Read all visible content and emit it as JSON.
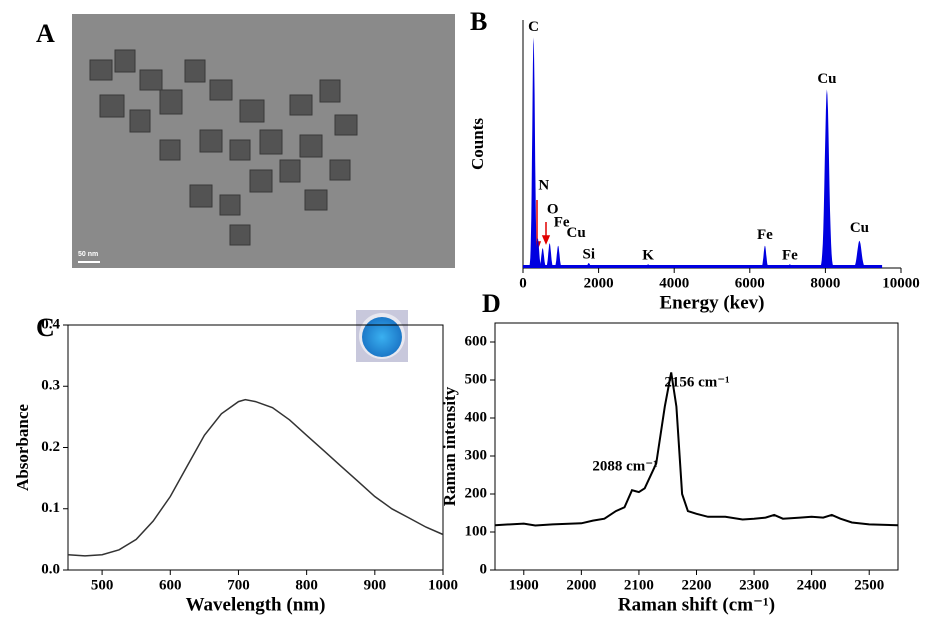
{
  "image_panel": {
    "panel_label": "A",
    "scale_bar": "50 nm"
  },
  "chart_data": [
    {
      "type": "area",
      "panel_label": "B",
      "ylabel": "Counts",
      "xlabel": "Energy (kev)",
      "color": "#0000e0",
      "x": [
        280,
        390,
        520,
        705,
        930,
        1740,
        3310,
        6400,
        7060,
        8040,
        8900
      ],
      "values": [
        93,
        12,
        8,
        10,
        9,
        2,
        1.5,
        9,
        1.5,
        72,
        11
      ],
      "labels": [
        "C",
        "N",
        "O",
        "Fe",
        "Cu",
        "Si",
        "K",
        "Fe",
        "Fe",
        "Cu",
        "Cu"
      ],
      "xlim": [
        0,
        10000
      ],
      "xticks": [
        0,
        2000,
        4000,
        6000,
        8000,
        10000
      ],
      "ylim": [
        0,
        100
      ]
    },
    {
      "type": "line",
      "panel_label": "C",
      "ylabel": "Absorbance",
      "xlabel": "Wavelength (nm)",
      "color": "#333333",
      "x": [
        450,
        475,
        500,
        525,
        550,
        575,
        600,
        625,
        650,
        675,
        700,
        710,
        725,
        750,
        775,
        800,
        825,
        850,
        875,
        900,
        925,
        950,
        975,
        1000
      ],
      "values": [
        0.025,
        0.023,
        0.025,
        0.033,
        0.05,
        0.08,
        0.12,
        0.17,
        0.22,
        0.255,
        0.275,
        0.278,
        0.275,
        0.265,
        0.245,
        0.22,
        0.195,
        0.17,
        0.145,
        0.12,
        0.1,
        0.085,
        0.07,
        0.058
      ],
      "xlim": [
        450,
        1000
      ],
      "xticks": [
        500,
        600,
        700,
        800,
        900,
        1000
      ],
      "ylim": [
        0,
        0.4
      ],
      "yticks": [
        {
          "value": 0,
          "label": "0.0"
        },
        0.1,
        0.2,
        0.3,
        0.4
      ]
    },
    {
      "type": "line",
      "panel_label": "D",
      "ylabel": "Raman intensity",
      "xlabel": "Raman shift (cm⁻¹)",
      "color": "#000000",
      "x": [
        1850,
        1900,
        1920,
        1950,
        2000,
        2020,
        2040,
        2060,
        2075,
        2088,
        2100,
        2110,
        2130,
        2145,
        2156,
        2165,
        2175,
        2185,
        2200,
        2220,
        2250,
        2280,
        2300,
        2320,
        2335,
        2350,
        2380,
        2400,
        2420,
        2435,
        2450,
        2470,
        2500,
        2550
      ],
      "values": [
        118,
        122,
        117,
        120,
        123,
        130,
        135,
        155,
        165,
        210,
        205,
        215,
        280,
        430,
        520,
        430,
        200,
        155,
        148,
        140,
        140,
        133,
        135,
        138,
        145,
        135,
        138,
        140,
        138,
        145,
        135,
        125,
        120,
        118
      ],
      "annotations": [
        "2088 cm⁻¹",
        "2156 cm⁻¹"
      ],
      "xlim": [
        1850,
        2550
      ],
      "xticks": [
        1900,
        2000,
        2100,
        2200,
        2300,
        2400,
        2500
      ],
      "ylim": [
        0,
        650
      ],
      "yticks": [
        0,
        100,
        200,
        300,
        400,
        500,
        600
      ]
    }
  ]
}
